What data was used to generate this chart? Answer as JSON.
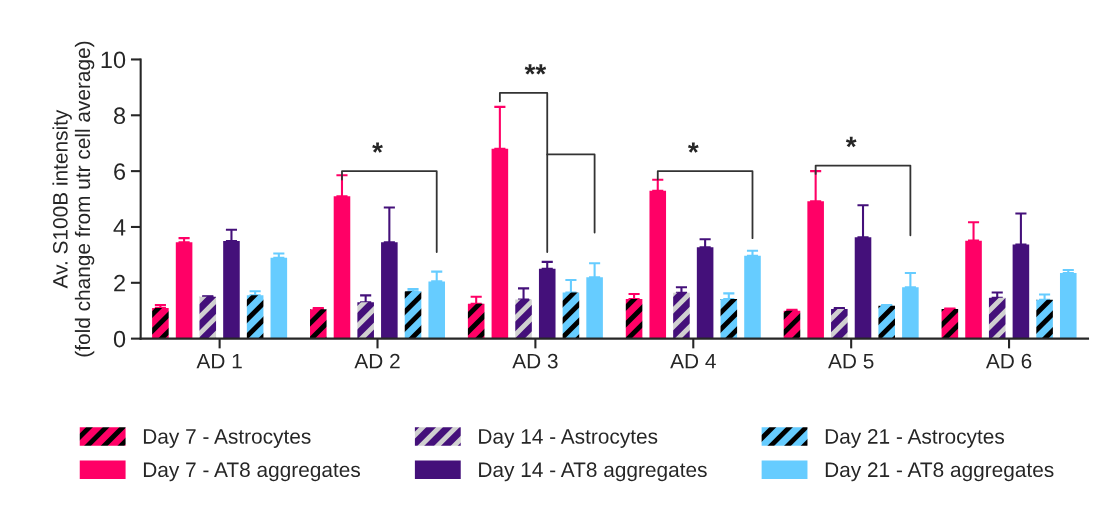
{
  "chart_data": {
    "type": "bar",
    "ylabel": "Av. S100B intensity\n(fold change from utr cell average)",
    "categories": [
      "AD 1",
      "AD 2",
      "AD 3",
      "AD 4",
      "AD 5",
      "AD 6"
    ],
    "ylim": [
      0,
      10
    ],
    "yticks": [
      0,
      2,
      4,
      6,
      8,
      10
    ],
    "grid": false,
    "legend": "bottom",
    "series": [
      {
        "name": "Day 7 - Astrocytes",
        "color": "#ff0066",
        "values": [
          1.1,
          1.05,
          1.25,
          1.42,
          1.0,
          1.06
        ],
        "errors": [
          [
            1.1,
            1.2
          ],
          [
            1.05,
            1.1
          ],
          [
            1.25,
            1.5
          ],
          [
            1.42,
            1.6
          ],
          [
            1.0,
            1.03
          ],
          [
            1.06,
            1.08
          ]
        ]
      },
      {
        "name": "Day 7 - AT8 aggregates",
        "color": "#ff0066",
        "values": [
          3.45,
          5.1,
          6.8,
          5.3,
          4.92,
          3.51
        ],
        "errors": [
          [
            3.45,
            3.6
          ],
          [
            5.1,
            5.85
          ],
          [
            6.8,
            8.3
          ],
          [
            5.3,
            5.69
          ],
          [
            4.92,
            6.0
          ],
          [
            3.51,
            4.17
          ]
        ]
      },
      {
        "name": "Day 14 - Astrocytes",
        "color": "#44107a",
        "values": [
          1.5,
          1.3,
          1.4,
          1.64,
          1.06,
          1.46
        ],
        "errors": [
          [
            1.5,
            1.52
          ],
          [
            1.3,
            1.55
          ],
          [
            1.4,
            1.8
          ],
          [
            1.64,
            1.84
          ],
          [
            1.06,
            1.1
          ],
          [
            1.46,
            1.65
          ]
        ]
      },
      {
        "name": "Day 14 - AT8 aggregates",
        "color": "#44107a",
        "values": [
          3.5,
          3.45,
          2.5,
          3.27,
          3.63,
          3.37
        ],
        "errors": [
          [
            3.5,
            3.9
          ],
          [
            3.45,
            4.7
          ],
          [
            2.5,
            2.75
          ],
          [
            3.27,
            3.56
          ],
          [
            3.63,
            4.78
          ],
          [
            3.37,
            4.48
          ]
        ]
      },
      {
        "name": "Day 21 - Astrocytes",
        "color": "#66ccff",
        "values": [
          1.55,
          1.7,
          1.65,
          1.42,
          1.18,
          1.39
        ],
        "errors": [
          [
            1.55,
            1.7
          ],
          [
            1.7,
            1.78
          ],
          [
            1.65,
            2.1
          ],
          [
            1.42,
            1.62
          ],
          [
            1.18,
            1.2
          ],
          [
            1.39,
            1.58
          ]
        ]
      },
      {
        "name": "Day 21 - AT8 aggregates",
        "color": "#66ccff",
        "values": [
          2.9,
          2.05,
          2.2,
          2.97,
          1.84,
          2.35
        ],
        "errors": [
          [
            2.9,
            3.05
          ],
          [
            2.05,
            2.4
          ],
          [
            2.2,
            2.7
          ],
          [
            2.97,
            3.15
          ],
          [
            1.84,
            2.35
          ],
          [
            2.35,
            2.46
          ]
        ]
      }
    ],
    "annotations": [
      "*",
      "**",
      "*",
      "*"
    ]
  }
}
